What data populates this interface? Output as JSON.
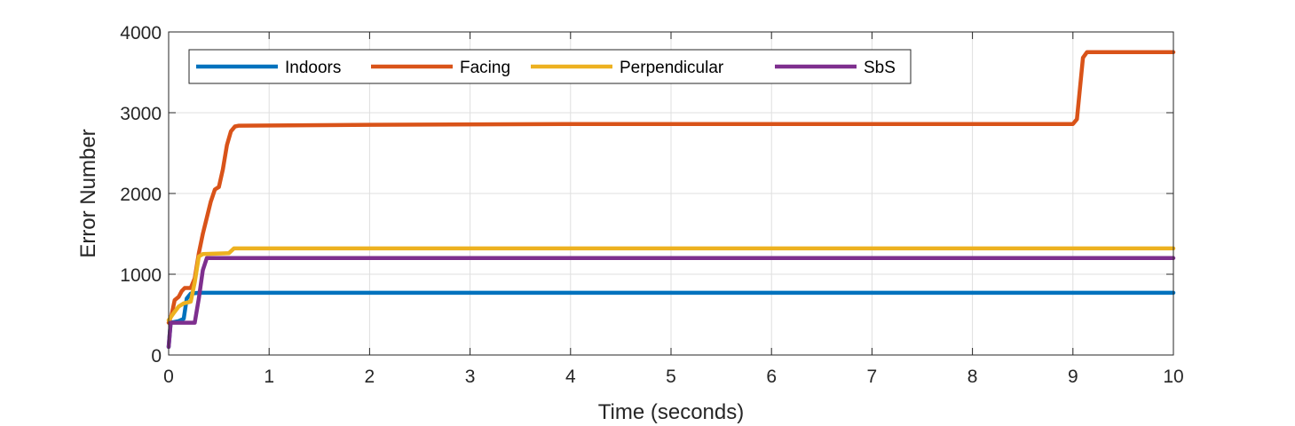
{
  "chart_data": {
    "type": "line",
    "title": "",
    "xlabel": "Time (seconds)",
    "ylabel": "Error Number",
    "xlim": [
      0,
      10
    ],
    "ylim": [
      0,
      4000
    ],
    "xticks": [
      0,
      1,
      2,
      3,
      4,
      5,
      6,
      7,
      8,
      9,
      10
    ],
    "yticks": [
      0,
      1000,
      2000,
      3000,
      4000
    ],
    "grid": true,
    "legend_position": "top-left",
    "legend_orientation": "horizontal",
    "series": [
      {
        "name": "Indoors",
        "color": "#0072bd",
        "points": [
          [
            0,
            100
          ],
          [
            0.02,
            400
          ],
          [
            0.1,
            420
          ],
          [
            0.15,
            450
          ],
          [
            0.18,
            700
          ],
          [
            0.22,
            760
          ],
          [
            0.3,
            770
          ],
          [
            10,
            770
          ]
        ]
      },
      {
        "name": "Facing",
        "color": "#d95319",
        "points": [
          [
            0,
            400
          ],
          [
            0.03,
            500
          ],
          [
            0.06,
            680
          ],
          [
            0.1,
            720
          ],
          [
            0.13,
            790
          ],
          [
            0.16,
            830
          ],
          [
            0.22,
            830
          ],
          [
            0.26,
            950
          ],
          [
            0.3,
            1260
          ],
          [
            0.34,
            1500
          ],
          [
            0.38,
            1700
          ],
          [
            0.42,
            1900
          ],
          [
            0.46,
            2050
          ],
          [
            0.5,
            2080
          ],
          [
            0.54,
            2300
          ],
          [
            0.58,
            2600
          ],
          [
            0.62,
            2770
          ],
          [
            0.66,
            2830
          ],
          [
            0.7,
            2840
          ],
          [
            2,
            2850
          ],
          [
            4,
            2860
          ],
          [
            9,
            2860
          ],
          [
            9.04,
            2920
          ],
          [
            9.1,
            3680
          ],
          [
            9.14,
            3750
          ],
          [
            10,
            3750
          ]
        ]
      },
      {
        "name": "Perpendicular",
        "color": "#edb120",
        "points": [
          [
            0,
            430
          ],
          [
            0.05,
            520
          ],
          [
            0.1,
            600
          ],
          [
            0.15,
            640
          ],
          [
            0.22,
            660
          ],
          [
            0.26,
            900
          ],
          [
            0.3,
            1220
          ],
          [
            0.34,
            1250
          ],
          [
            0.6,
            1260
          ],
          [
            0.65,
            1320
          ],
          [
            10,
            1320
          ]
        ]
      },
      {
        "name": "SbS",
        "color": "#7e2f8e",
        "points": [
          [
            0,
            100
          ],
          [
            0.02,
            400
          ],
          [
            0.26,
            400
          ],
          [
            0.3,
            700
          ],
          [
            0.34,
            1050
          ],
          [
            0.38,
            1200
          ],
          [
            10,
            1200
          ]
        ]
      }
    ]
  }
}
